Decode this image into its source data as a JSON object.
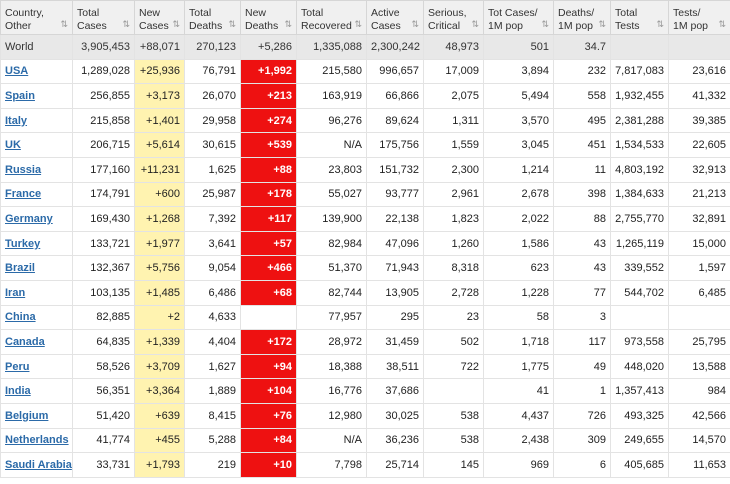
{
  "headers": [
    {
      "l1": "Country,",
      "l2": "Other",
      "sort": true
    },
    {
      "l1": "Total",
      "l2": "Cases",
      "sort": true
    },
    {
      "l1": "New",
      "l2": "Cases",
      "sort": true
    },
    {
      "l1": "Total",
      "l2": "Deaths",
      "sort": true
    },
    {
      "l1": "New",
      "l2": "Deaths",
      "sort": true
    },
    {
      "l1": "Total",
      "l2": "Recovered",
      "sort": true
    },
    {
      "l1": "Active",
      "l2": "Cases",
      "sort": true
    },
    {
      "l1": "Serious,",
      "l2": "Critical",
      "sort": true
    },
    {
      "l1": "Tot Cases/",
      "l2": "1M pop",
      "sort": true
    },
    {
      "l1": "Deaths/",
      "l2": "1M pop",
      "sort": true
    },
    {
      "l1": "Total",
      "l2": "Tests",
      "sort": true
    },
    {
      "l1": "Tests/",
      "l2": "1M pop",
      "sort": true
    }
  ],
  "sort_icon": "sort-icon",
  "colors": {
    "new_cases": "#fff3b0",
    "new_deaths": "#ee1111",
    "world_row": "#e8e8e8",
    "link": "#2b6aa8"
  },
  "world": [
    "World",
    "3,905,453",
    "+88,071",
    "270,123",
    "+5,286",
    "1,335,088",
    "2,300,242",
    "48,973",
    "501",
    "34.7",
    "",
    ""
  ],
  "rows": [
    [
      "USA",
      "1,289,028",
      "+25,936",
      "76,791",
      "+1,992",
      "215,580",
      "996,657",
      "17,009",
      "3,894",
      "232",
      "7,817,083",
      "23,616"
    ],
    [
      "Spain",
      "256,855",
      "+3,173",
      "26,070",
      "+213",
      "163,919",
      "66,866",
      "2,075",
      "5,494",
      "558",
      "1,932,455",
      "41,332"
    ],
    [
      "Italy",
      "215,858",
      "+1,401",
      "29,958",
      "+274",
      "96,276",
      "89,624",
      "1,311",
      "3,570",
      "495",
      "2,381,288",
      "39,385"
    ],
    [
      "UK",
      "206,715",
      "+5,614",
      "30,615",
      "+539",
      "N/A",
      "175,756",
      "1,559",
      "3,045",
      "451",
      "1,534,533",
      "22,605"
    ],
    [
      "Russia",
      "177,160",
      "+11,231",
      "1,625",
      "+88",
      "23,803",
      "151,732",
      "2,300",
      "1,214",
      "11",
      "4,803,192",
      "32,913"
    ],
    [
      "France",
      "174,791",
      "+600",
      "25,987",
      "+178",
      "55,027",
      "93,777",
      "2,961",
      "2,678",
      "398",
      "1,384,633",
      "21,213"
    ],
    [
      "Germany",
      "169,430",
      "+1,268",
      "7,392",
      "+117",
      "139,900",
      "22,138",
      "1,823",
      "2,022",
      "88",
      "2,755,770",
      "32,891"
    ],
    [
      "Turkey",
      "133,721",
      "+1,977",
      "3,641",
      "+57",
      "82,984",
      "47,096",
      "1,260",
      "1,586",
      "43",
      "1,265,119",
      "15,000"
    ],
    [
      "Brazil",
      "132,367",
      "+5,756",
      "9,054",
      "+466",
      "51,370",
      "71,943",
      "8,318",
      "623",
      "43",
      "339,552",
      "1,597"
    ],
    [
      "Iran",
      "103,135",
      "+1,485",
      "6,486",
      "+68",
      "82,744",
      "13,905",
      "2,728",
      "1,228",
      "77",
      "544,702",
      "6,485"
    ],
    [
      "China",
      "82,885",
      "+2",
      "4,633",
      "",
      "77,957",
      "295",
      "23",
      "58",
      "3",
      "",
      ""
    ],
    [
      "Canada",
      "64,835",
      "+1,339",
      "4,404",
      "+172",
      "28,972",
      "31,459",
      "502",
      "1,718",
      "117",
      "973,558",
      "25,795"
    ],
    [
      "Peru",
      "58,526",
      "+3,709",
      "1,627",
      "+94",
      "18,388",
      "38,511",
      "722",
      "1,775",
      "49",
      "448,020",
      "13,588"
    ],
    [
      "India",
      "56,351",
      "+3,364",
      "1,889",
      "+104",
      "16,776",
      "37,686",
      "",
      "41",
      "1",
      "1,357,413",
      "984"
    ],
    [
      "Belgium",
      "51,420",
      "+639",
      "8,415",
      "+76",
      "12,980",
      "30,025",
      "538",
      "4,437",
      "726",
      "493,325",
      "42,566"
    ],
    [
      "Netherlands",
      "41,774",
      "+455",
      "5,288",
      "+84",
      "N/A",
      "36,236",
      "538",
      "2,438",
      "309",
      "249,655",
      "14,570"
    ],
    [
      "Saudi Arabia",
      "33,731",
      "+1,793",
      "219",
      "+10",
      "7,798",
      "25,714",
      "145",
      "969",
      "6",
      "405,685",
      "11,653"
    ]
  ]
}
